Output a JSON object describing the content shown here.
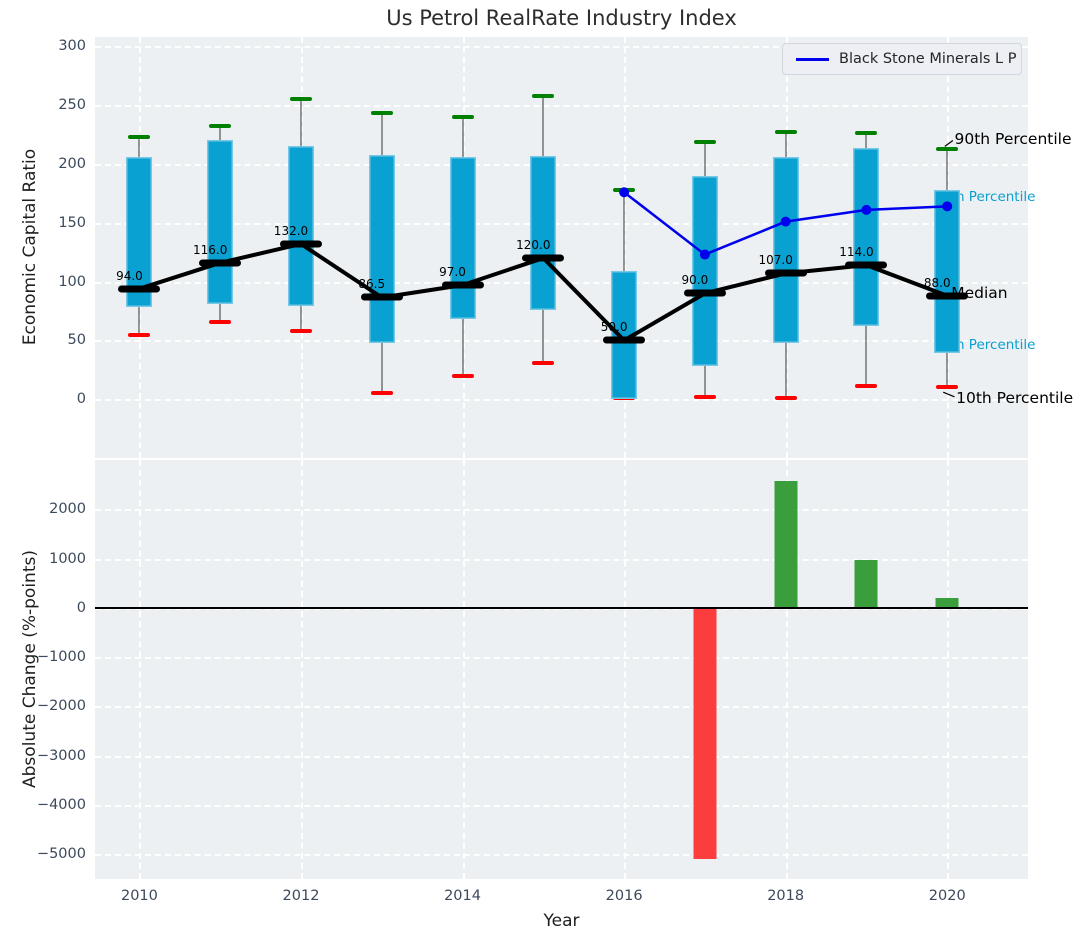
{
  "title": "Us Petrol RealRate Industry Index",
  "legend": {
    "label": "Black Stone Minerals L P"
  },
  "colors": {
    "plot_bg": "#ecf0f2",
    "grid": "#ffffff",
    "box_fill": "#09a0d2",
    "whisker": "rgba(70,70,70,0.55)",
    "p90_cap": "#008000",
    "p10_cap": "#ff0000",
    "median": "#000000",
    "company_line": "#0000ee",
    "bar_positive": "#3b9e3c",
    "bar_negative": "#fb3d3d",
    "tick_label": "#3d4a5c",
    "annotation_cyan": "#0a9fd1",
    "annotation_black": "#000000",
    "zero_line": "#000000"
  },
  "chart_data": [
    {
      "type": "boxplot",
      "title": "Us Petrol RealRate Industry Index",
      "xlabel": "",
      "ylabel": "Economic Capital Ratio",
      "xlim": [
        2009.45,
        2021.0
      ],
      "ylim": [
        -50,
        308
      ],
      "yticks": [
        0,
        50,
        100,
        150,
        200,
        250,
        300
      ],
      "ytick_labels": [
        "0",
        "50",
        "100",
        "150",
        "200",
        "250",
        "300"
      ],
      "xticks": [
        2010,
        2012,
        2014,
        2016,
        2018,
        2020
      ],
      "grid": "dashed-white-both",
      "years": [
        2010,
        2011,
        2012,
        2013,
        2014,
        2015,
        2016,
        2017,
        2018,
        2019,
        2020
      ],
      "p10": [
        55,
        66,
        58,
        5,
        20,
        31,
        1,
        2,
        1,
        11,
        10
      ],
      "q1": [
        78,
        81,
        79,
        48,
        68,
        76,
        0,
        28,
        48,
        62,
        39
      ],
      "median": [
        94.0,
        116.0,
        132.0,
        86.5,
        97.0,
        120.0,
        50.0,
        90.0,
        107.0,
        114.0,
        88.0
      ],
      "q3": [
        206,
        220,
        215,
        208,
        206,
        207,
        109,
        190,
        206,
        214,
        178
      ],
      "p90": [
        223,
        232,
        255,
        243,
        240,
        258,
        178,
        219,
        227,
        226,
        213
      ],
      "median_labels": [
        "94.0",
        "116.0",
        "132.0",
        "86.5",
        "97.0",
        "120.0",
        "50.0",
        "90.0",
        "107.0",
        "114.0",
        "88.0"
      ],
      "series": [
        {
          "name": "Black Stone Minerals L P",
          "x": [
            2016,
            2017,
            2018,
            2019,
            2020
          ],
          "y": [
            176,
            123,
            151,
            161,
            164
          ]
        }
      ],
      "annotations": [
        {
          "text": "90th Percentile",
          "x": 2020.09,
          "y": 221,
          "color_key": "annotation_black",
          "size": 15.5,
          "layer": "front",
          "connector": {
            "x1": 2019.97,
            "y1": 215,
            "x2": 2020.07,
            "y2": 220
          }
        },
        {
          "text": "75th Percentile",
          "x": 2019.83,
          "y": 172,
          "color_key": "annotation_cyan",
          "size": 13.5,
          "layer": "back"
        },
        {
          "text": "Median",
          "x": 2020.05,
          "y": 90,
          "color_key": "annotation_black",
          "size": 15.5,
          "layer": "front"
        },
        {
          "text": "25th Percentile",
          "x": 2019.83,
          "y": 46,
          "color_key": "annotation_cyan",
          "size": 13.5,
          "layer": "back"
        },
        {
          "text": "10th Percentile",
          "x": 2020.11,
          "y": 1,
          "color_key": "annotation_black",
          "size": 15.5,
          "layer": "front",
          "connector": {
            "x1": 2019.95,
            "y1": 6,
            "x2": 2020.09,
            "y2": 2
          }
        }
      ]
    },
    {
      "type": "bar",
      "xlabel": "Year",
      "ylabel": "Absolute Change (%-points)",
      "xlim": [
        2009.45,
        2021.0
      ],
      "ylim": [
        -5500,
        3000
      ],
      "yticks": [
        2000,
        1000,
        0,
        -1000,
        -2000,
        -3000,
        -4000,
        -5000
      ],
      "ytick_labels": [
        "2000",
        "1000",
        "0",
        "−1000",
        "−2000",
        "−3000",
        "−4000",
        "−5000"
      ],
      "xticks": [
        2010,
        2012,
        2014,
        2016,
        2018,
        2020
      ],
      "xtick_labels": [
        "2010",
        "2012",
        "2014",
        "2016",
        "2018",
        "2020"
      ],
      "grid": "dashed-white-both",
      "zero_line": true,
      "x": [
        2017,
        2018,
        2019,
        2020
      ],
      "values": [
        -5100,
        2580,
        970,
        200
      ]
    }
  ]
}
